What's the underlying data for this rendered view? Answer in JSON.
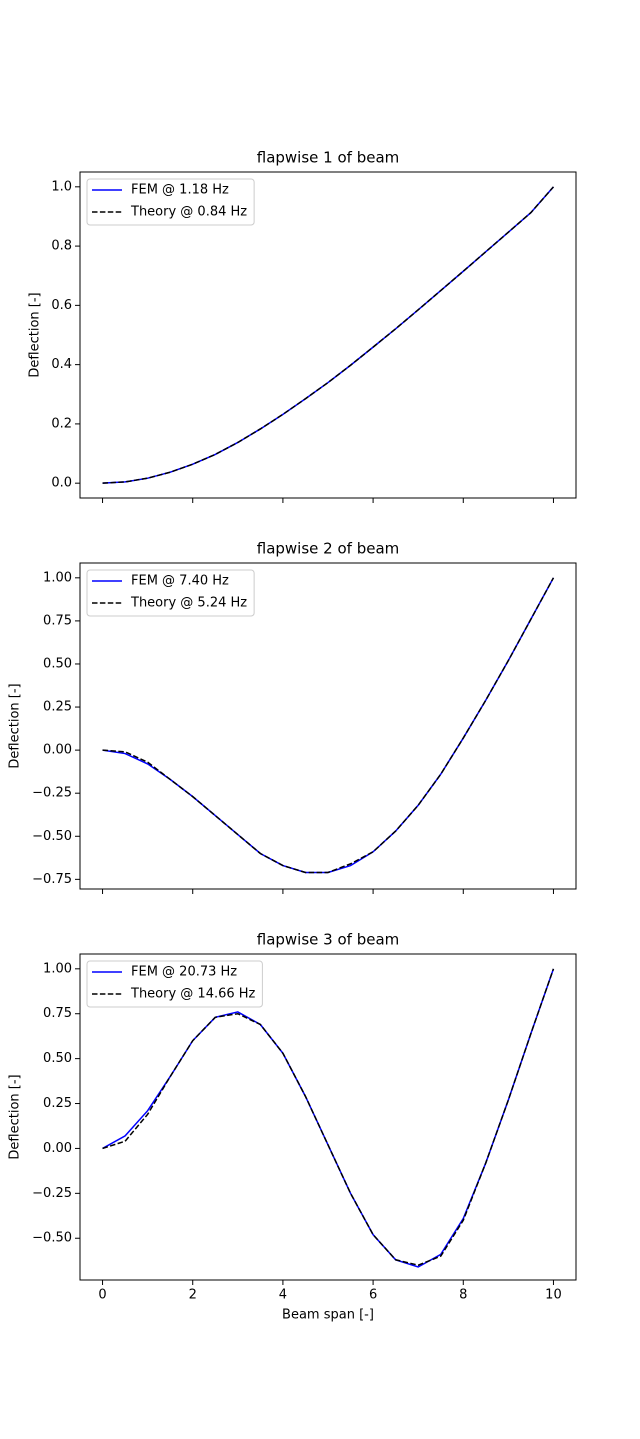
{
  "chart_data": [
    {
      "type": "line",
      "title": "flapwise 1 of beam",
      "ylabel": "Deflection [-]",
      "xlim": [
        -0.5,
        10.5
      ],
      "ylim": [
        -0.05,
        1.05
      ],
      "xticks": [
        0,
        2,
        4,
        6,
        8,
        10
      ],
      "yticks": [
        {
          "value": 0,
          "label": "0.0"
        },
        {
          "value": 0.2,
          "label": "0.2"
        },
        {
          "value": 0.4,
          "label": "0.4"
        },
        {
          "value": 0.6,
          "label": "0.6"
        },
        {
          "value": 0.8,
          "label": "0.8"
        },
        {
          "value": 1,
          "label": "1.0"
        }
      ],
      "legend": "upper left",
      "x": [
        0,
        0.5,
        1,
        1.5,
        2,
        2.5,
        3,
        3.5,
        4,
        4.5,
        5,
        5.5,
        6,
        6.5,
        7,
        7.5,
        8,
        8.5,
        9,
        9.5,
        10
      ],
      "series": [
        {
          "name": "FEM @ 1.18 Hz",
          "color": "#0000ff",
          "linestyle": "solid",
          "values": [
            0,
            0.0043,
            0.0168,
            0.037,
            0.064,
            0.097,
            0.1374,
            0.183,
            0.2323,
            0.285,
            0.3395,
            0.398,
            0.4591,
            0.521,
            0.5849,
            0.65,
            0.7151,
            0.781,
            0.8468,
            0.913,
            1
          ]
        },
        {
          "name": "Theory @ 0.84 Hz",
          "color": "#000000",
          "linestyle": "dashed",
          "values": [
            0,
            0.0043,
            0.0168,
            0.037,
            0.064,
            0.097,
            0.1374,
            0.183,
            0.2323,
            0.285,
            0.3395,
            0.398,
            0.4591,
            0.521,
            0.5849,
            0.65,
            0.7151,
            0.781,
            0.8468,
            0.913,
            1
          ]
        }
      ]
    },
    {
      "type": "line",
      "title": "flapwise 2 of beam",
      "ylabel": "Deflection [-]",
      "xlim": [
        -0.5,
        10.5
      ],
      "ylim": [
        -0.806,
        1.086
      ],
      "xticks": [
        0,
        2,
        4,
        6,
        8,
        10
      ],
      "yticks": [
        {
          "value": -0.75,
          "label": "−0.75"
        },
        {
          "value": -0.5,
          "label": "−0.50"
        },
        {
          "value": -0.25,
          "label": "−0.25"
        },
        {
          "value": 0,
          "label": "0.00"
        },
        {
          "value": 0.25,
          "label": "0.25"
        },
        {
          "value": 0.5,
          "label": "0.50"
        },
        {
          "value": 0.75,
          "label": "0.75"
        },
        {
          "value": 1,
          "label": "1.00"
        }
      ],
      "legend": "upper left",
      "x": [
        0,
        0.5,
        1,
        1.5,
        2,
        2.5,
        3,
        3.5,
        4,
        4.5,
        5,
        5.5,
        6,
        6.5,
        7,
        7.5,
        8,
        8.5,
        9,
        9.5,
        10
      ],
      "series": [
        {
          "name": "FEM @ 7.40 Hz",
          "color": "#0000ff",
          "linestyle": "solid",
          "values": [
            0,
            -0.02,
            -0.08,
            -0.17,
            -0.27,
            -0.38,
            -0.49,
            -0.6,
            -0.67,
            -0.71,
            -0.71,
            -0.67,
            -0.59,
            -0.47,
            -0.32,
            -0.14,
            0.07,
            0.29,
            0.52,
            0.76,
            1
          ]
        },
        {
          "name": "Theory @ 5.24 Hz",
          "color": "#000000",
          "linestyle": "dashed",
          "values": [
            0,
            -0.01,
            -0.07,
            -0.17,
            -0.27,
            -0.38,
            -0.49,
            -0.6,
            -0.67,
            -0.71,
            -0.71,
            -0.66,
            -0.59,
            -0.47,
            -0.32,
            -0.14,
            0.07,
            0.29,
            0.52,
            0.76,
            1
          ]
        }
      ]
    },
    {
      "type": "line",
      "title": "flapwise 3 of beam",
      "ylabel": "Deflection [-]",
      "xlabel": "Beam span [-]",
      "xlim": [
        -0.5,
        10.5
      ],
      "ylim": [
        -0.7325,
        1.0825
      ],
      "xticks": [
        0,
        2,
        4,
        6,
        8,
        10
      ],
      "yticks": [
        {
          "value": -0.5,
          "label": "−0.50"
        },
        {
          "value": -0.25,
          "label": "−0.25"
        },
        {
          "value": 0,
          "label": "0.00"
        },
        {
          "value": 0.25,
          "label": "0.25"
        },
        {
          "value": 0.5,
          "label": "0.50"
        },
        {
          "value": 0.75,
          "label": "0.75"
        },
        {
          "value": 1,
          "label": "1.00"
        }
      ],
      "legend": "upper left",
      "x": [
        0,
        0.5,
        1,
        1.5,
        2,
        2.5,
        3,
        3.5,
        4,
        4.5,
        5,
        5.5,
        6,
        6.5,
        7,
        7.5,
        8,
        8.5,
        9,
        9.5,
        10
      ],
      "series": [
        {
          "name": "FEM @ 20.73 Hz",
          "color": "#0000ff",
          "linestyle": "solid",
          "values": [
            0,
            0.07,
            0.21,
            0.4,
            0.6,
            0.73,
            0.76,
            0.69,
            0.53,
            0.29,
            0.02,
            -0.25,
            -0.48,
            -0.62,
            -0.66,
            -0.59,
            -0.39,
            -0.08,
            0.27,
            0.64,
            1
          ]
        },
        {
          "name": "Theory @ 14.66 Hz",
          "color": "#000000",
          "linestyle": "dashed",
          "values": [
            0,
            0.04,
            0.19,
            0.4,
            0.6,
            0.73,
            0.75,
            0.69,
            0.53,
            0.29,
            0.02,
            -0.25,
            -0.48,
            -0.62,
            -0.65,
            -0.6,
            -0.4,
            -0.08,
            0.27,
            0.64,
            1
          ]
        }
      ]
    }
  ]
}
